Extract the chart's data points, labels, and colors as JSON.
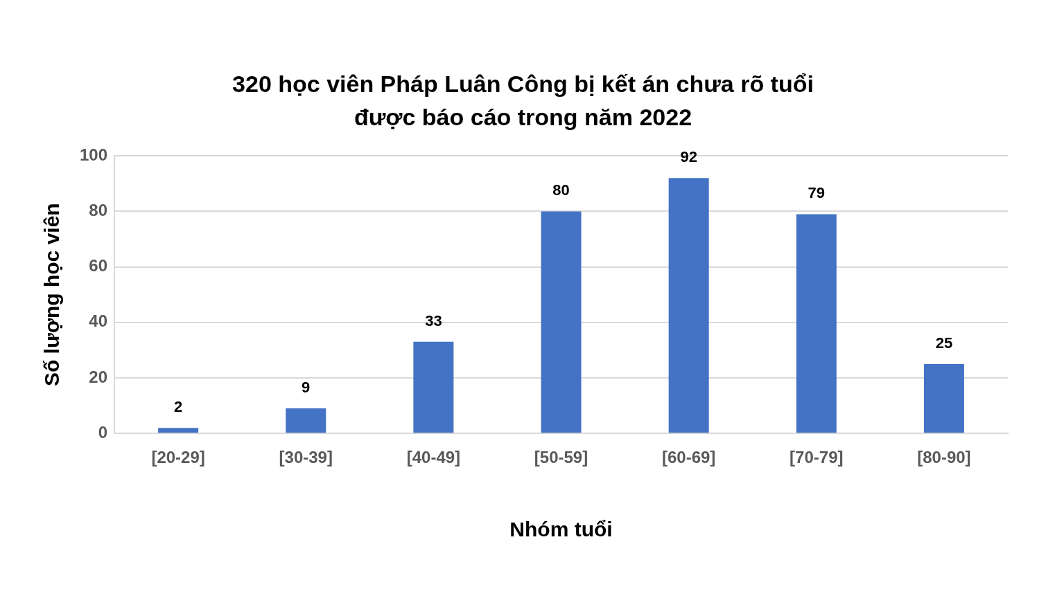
{
  "chart_data": {
    "type": "bar",
    "title": "320 học viên Pháp Luân Công bị kết án chưa rõ tuổi\nđược báo cáo trong năm 2022",
    "xlabel": "Nhóm tuổi",
    "ylabel": "Số lượng học viên",
    "categories": [
      "[20-29]",
      "[30-39]",
      "[40-49]",
      "[50-59]",
      "[60-69]",
      "[70-79]",
      "[80-90]"
    ],
    "values": [
      2,
      9,
      33,
      80,
      92,
      79,
      25
    ],
    "color": "#4472c4",
    "ylim": [
      0,
      100
    ],
    "yticks": [
      0,
      20,
      40,
      60,
      80,
      100
    ],
    "grid": "y",
    "data_labels": true,
    "legend": false
  }
}
